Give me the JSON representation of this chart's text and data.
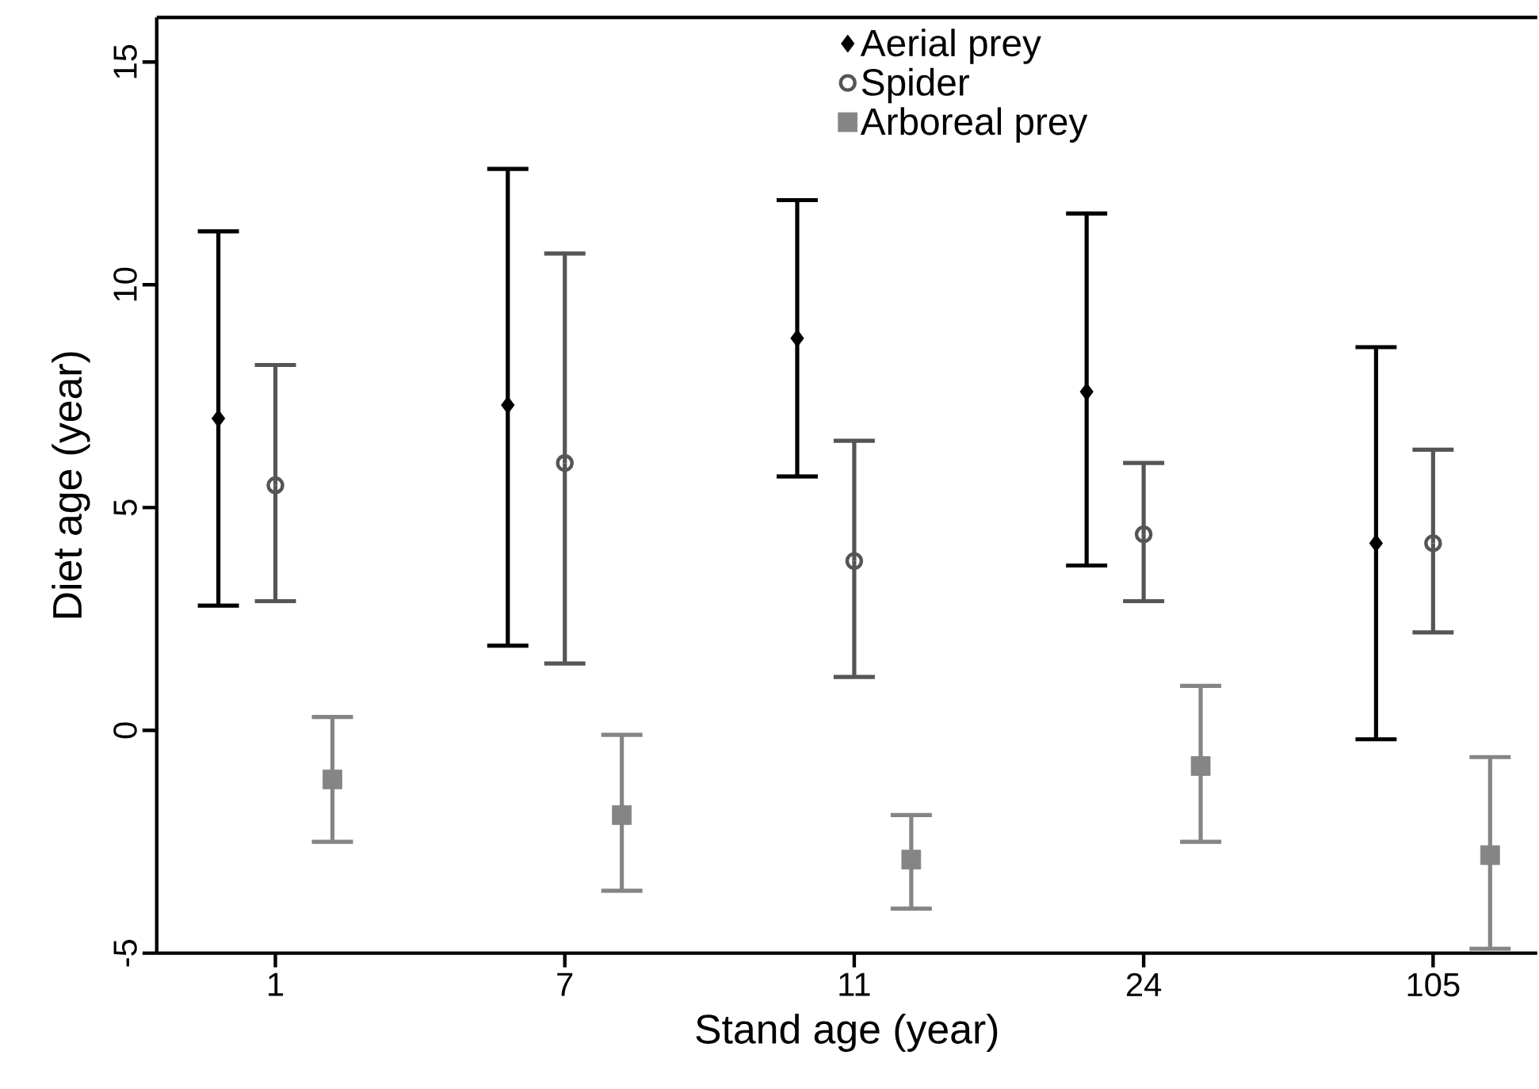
{
  "chart_data": {
    "type": "scatter",
    "xlabel": "Stand age (year)",
    "ylabel": "Diet age (year)",
    "categories": [
      "1",
      "7",
      "11",
      "24",
      "105"
    ],
    "ylim": [
      -5,
      16
    ],
    "yticks": [
      -5,
      0,
      5,
      10,
      15
    ],
    "legend": "top right",
    "grid": false,
    "series": [
      {
        "name": "Aerial prey",
        "color": "#000000",
        "marker": "diamond",
        "values": [
          7.0,
          7.3,
          8.8,
          7.6,
          4.2
        ],
        "errors": [
          [
            2.8,
            11.2
          ],
          [
            1.9,
            12.6
          ],
          [
            5.7,
            11.9
          ],
          [
            3.7,
            11.6
          ],
          [
            -0.2,
            8.6
          ]
        ]
      },
      {
        "name": "Spider",
        "color": "#555555",
        "marker": "circle",
        "values": [
          5.5,
          6.0,
          3.8,
          4.4,
          4.2
        ],
        "errors": [
          [
            2.9,
            8.2
          ],
          [
            1.5,
            10.7
          ],
          [
            1.2,
            6.5
          ],
          [
            2.9,
            6.0
          ],
          [
            2.2,
            6.3
          ]
        ]
      },
      {
        "name": "Arboreal prey",
        "color": "#858585",
        "marker": "square",
        "values": [
          -1.1,
          -1.9,
          -2.9,
          -0.8,
          -2.8
        ],
        "errors": [
          [
            -2.5,
            0.3
          ],
          [
            -3.6,
            -0.1
          ],
          [
            -4.0,
            -1.9
          ],
          [
            -2.5,
            1.0
          ],
          [
            -4.9,
            -0.6
          ]
        ]
      }
    ]
  }
}
